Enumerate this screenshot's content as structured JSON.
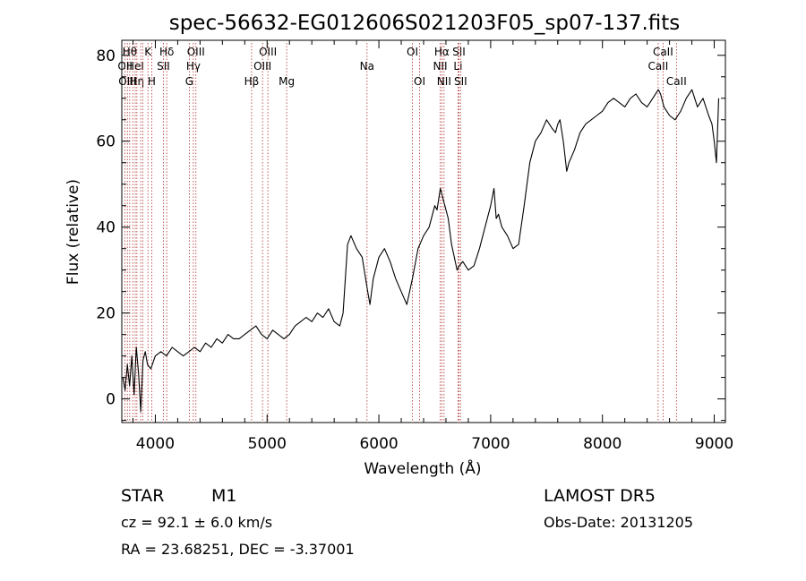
{
  "chart_data": {
    "type": "line",
    "title": "spec-56632-EG012606S021203F05_sp07-137.fits",
    "xlabel": "Wavelength (Å)",
    "ylabel": "Flux (relative)",
    "xlim": [
      3700,
      9100
    ],
    "ylim": [
      -5.5,
      83.5
    ],
    "x_ticks": [
      4000,
      5000,
      6000,
      7000,
      8000,
      9000
    ],
    "y_ticks": [
      0,
      20,
      40,
      60,
      80
    ],
    "grid": false,
    "line_color": "#000000",
    "marker_color": "#b03030",
    "series": [
      {
        "x": [
          3710,
          3730,
          3750,
          3770,
          3790,
          3810,
          3830,
          3850,
          3870,
          3890,
          3910,
          3930,
          3960,
          4000,
          4050,
          4100,
          4150,
          4200,
          4250,
          4300,
          4350,
          4400,
          4450,
          4500,
          4550,
          4600,
          4650,
          4700,
          4750,
          4800,
          4850,
          4900,
          4950,
          5000,
          5050,
          5100,
          5150,
          5200,
          5250,
          5300,
          5350,
          5400,
          5450,
          5500,
          5550,
          5600,
          5650,
          5680,
          5700,
          5720,
          5750,
          5800,
          5850,
          5900,
          5920,
          5950,
          6000,
          6050,
          6100,
          6150,
          6200,
          6250,
          6300,
          6350,
          6400,
          6450,
          6500,
          6520,
          6550,
          6570,
          6600,
          6620,
          6650,
          6700,
          6720,
          6750,
          6800,
          6850,
          6900,
          6950,
          7000,
          7030,
          7050,
          7070,
          7100,
          7150,
          7200,
          7250,
          7300,
          7350,
          7400,
          7450,
          7500,
          7550,
          7580,
          7600,
          7620,
          7650,
          7680,
          7700,
          7750,
          7800,
          7850,
          7900,
          7950,
          8000,
          8050,
          8100,
          8150,
          8200,
          8250,
          8300,
          8350,
          8400,
          8450,
          8500,
          8520,
          8550,
          8600,
          8650,
          8700,
          8750,
          8800,
          8850,
          8900,
          8950,
          8980,
          9000,
          9020,
          9040
        ],
        "y": [
          5,
          2,
          8,
          3,
          10,
          1,
          12,
          6,
          -3,
          9,
          11,
          8,
          7,
          10,
          11,
          10,
          12,
          11,
          10,
          11,
          12,
          11,
          13,
          12,
          14,
          13,
          15,
          14,
          14,
          15,
          16,
          17,
          15,
          14,
          16,
          15,
          14,
          15,
          17,
          18,
          19,
          18,
          20,
          19,
          21,
          18,
          17,
          20,
          28,
          36,
          38,
          35,
          33,
          25,
          22,
          28,
          33,
          35,
          32,
          28,
          25,
          22,
          28,
          35,
          38,
          40,
          45,
          44,
          49,
          47,
          44,
          42,
          36,
          30,
          31,
          32,
          30,
          31,
          35,
          40,
          45,
          49,
          42,
          43,
          40,
          38,
          35,
          36,
          45,
          55,
          60,
          62,
          65,
          63,
          62,
          64,
          65,
          60,
          53,
          55,
          58,
          62,
          64,
          65,
          66,
          67,
          69,
          70,
          69,
          68,
          70,
          71,
          69,
          68,
          70,
          72,
          71,
          68,
          66,
          65,
          67,
          70,
          72,
          68,
          70,
          66,
          64,
          60,
          55,
          70
        ]
      }
    ],
    "line_markers": [
      {
        "w": 3729,
        "label": "OII",
        "row": 1
      },
      {
        "w": 3750,
        "label": "OIII",
        "row": 2
      },
      {
        "w": 3771,
        "label": "Hθ",
        "row": 0
      },
      {
        "w": 3798,
        "label": "",
        "row": -1
      },
      {
        "w": 3820,
        "label": "HeI",
        "row": 1
      },
      {
        "w": 3835,
        "label": "Hη",
        "row": 2
      },
      {
        "w": 3869,
        "label": "",
        "row": -1
      },
      {
        "w": 3889,
        "label": "",
        "row": -1
      },
      {
        "w": 3934,
        "label": "K",
        "row": 0
      },
      {
        "w": 3968,
        "label": "H",
        "row": 2
      },
      {
        "w": 4072,
        "label": "SII",
        "row": 1
      },
      {
        "w": 4102,
        "label": "Hδ",
        "row": 0
      },
      {
        "w": 4304,
        "label": "G",
        "row": 2
      },
      {
        "w": 4340,
        "label": "Hγ",
        "row": 1
      },
      {
        "w": 4363,
        "label": "OIII",
        "row": 0
      },
      {
        "w": 4861,
        "label": "Hβ",
        "row": 2
      },
      {
        "w": 4959,
        "label": "OIII",
        "row": 1
      },
      {
        "w": 5007,
        "label": "OIII",
        "row": 0
      },
      {
        "w": 5175,
        "label": "Mg",
        "row": 2
      },
      {
        "w": 5894,
        "label": "Na",
        "row": 1
      },
      {
        "w": 6300,
        "label": "OI",
        "row": 0
      },
      {
        "w": 6364,
        "label": "OI",
        "row": 2
      },
      {
        "w": 6548,
        "label": "NII",
        "row": 1
      },
      {
        "w": 6563,
        "label": "Hα",
        "row": 0
      },
      {
        "w": 6583,
        "label": "NII",
        "row": 2
      },
      {
        "w": 6708,
        "label": "Li",
        "row": 1
      },
      {
        "w": 6716,
        "label": "SII",
        "row": 0
      },
      {
        "w": 6731,
        "label": "SII",
        "row": 2
      },
      {
        "w": 8498,
        "label": "CaII",
        "row": 1
      },
      {
        "w": 8542,
        "label": "CaII",
        "row": 0
      },
      {
        "w": 8662,
        "label": "CaII",
        "row": 2
      }
    ]
  },
  "info": {
    "class": "STAR",
    "subclass": "M1",
    "survey": "LAMOST DR5",
    "cz": "cz = 92.1 ± 6.0 km/s",
    "obs_date": "Obs-Date: 20131205",
    "coords": "RA =  23.68251, DEC =  -3.37001"
  }
}
